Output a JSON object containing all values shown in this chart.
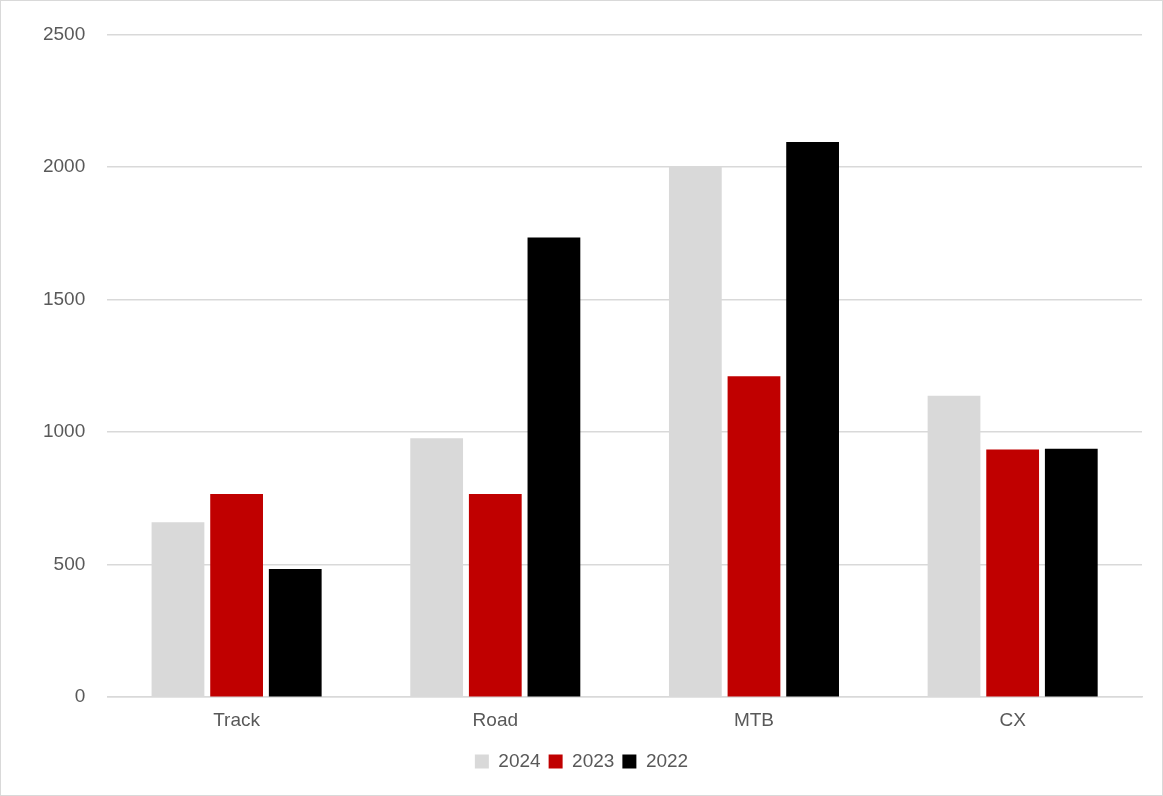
{
  "chart_data": {
    "type": "bar",
    "categories": [
      "Track",
      "Road",
      "MTB",
      "CX"
    ],
    "series": [
      {
        "name": "2024",
        "color": "#d9d9d9",
        "values": [
          660,
          977,
          2004,
          1137
        ]
      },
      {
        "name": "2023",
        "color": "#c00000",
        "values": [
          766,
          766,
          1211,
          934
        ]
      },
      {
        "name": "2022",
        "color": "#000000",
        "values": [
          484,
          1734,
          2094,
          937
        ]
      }
    ],
    "ylim": [
      0,
      2500
    ],
    "yticks": [
      0,
      500,
      1000,
      1500,
      2000,
      2500
    ],
    "grid": "y",
    "legend": "bottom"
  }
}
